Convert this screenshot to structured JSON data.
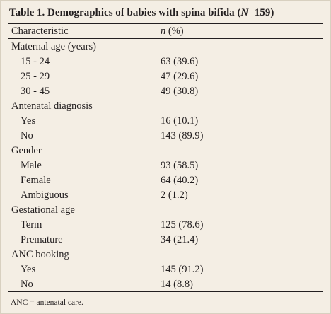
{
  "table": {
    "title": {
      "prefix": "Table 1. Demographics of babies with spina bifida (",
      "italic": "N",
      "suffix": "=159)"
    },
    "header": {
      "characteristic": "Characteristic",
      "value_italic": "n",
      "value_rest": " (%)"
    },
    "groups": [
      {
        "label": "Maternal age (years)",
        "rows": [
          [
            "15 - 24",
            "63 (39.6)"
          ],
          [
            "25 - 29",
            "47 (29.6)"
          ],
          [
            "30 - 45",
            "49 (30.8)"
          ]
        ]
      },
      {
        "label": "Antenatal diagnosis",
        "rows": [
          [
            "Yes",
            "16 (10.1)"
          ],
          [
            "No",
            "143 (89.9)"
          ]
        ]
      },
      {
        "label": "Gender",
        "rows": [
          [
            "Male",
            "93 (58.5)"
          ],
          [
            "Female",
            "64 (40.2)"
          ],
          [
            "Ambiguous",
            "2 (1.2)"
          ]
        ]
      },
      {
        "label": "Gestational age",
        "rows": [
          [
            "Term",
            "125 (78.6)"
          ],
          [
            "Premature",
            "34 (21.4)"
          ]
        ]
      },
      {
        "label": "ANC booking",
        "rows": [
          [
            "Yes",
            "145 (91.2)"
          ],
          [
            "No",
            "14 (8.8)"
          ]
        ]
      }
    ],
    "footnote": "ANC = antenatal care."
  }
}
